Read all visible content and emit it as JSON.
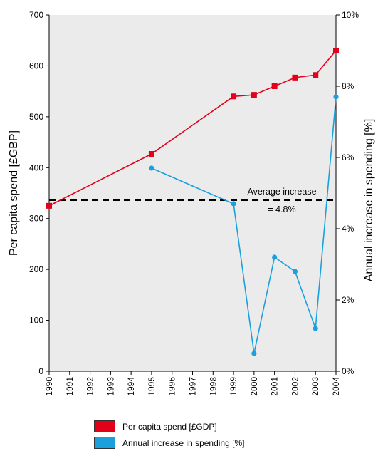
{
  "colors": {
    "series1": "#e2001a",
    "series2": "#1aa0dc",
    "plot_background": "#ebebeb",
    "reference_line": "#000000"
  },
  "chart_data": {
    "type": "line",
    "categories": [
      "1990",
      "1991",
      "1992",
      "1993",
      "1994",
      "1995",
      "1996",
      "1997",
      "1998",
      "1999",
      "2000",
      "2001",
      "2002",
      "2003",
      "2004"
    ],
    "ylabel": "Per capita spend [£GBP]",
    "y2label": "Annual increase in spending [%]",
    "ylim": [
      0,
      700
    ],
    "y2lim": [
      0,
      10
    ],
    "yticks": [
      "0",
      "100",
      "200",
      "300",
      "400",
      "500",
      "600",
      "700"
    ],
    "y2ticks": [
      "0%",
      "2%",
      "4%",
      "6%",
      "8%",
      "10%"
    ],
    "grid": false,
    "legend_position": "bottom",
    "series": [
      {
        "name": "Per capita spend [£GDP]",
        "axis": "left",
        "marker": "square",
        "points": [
          {
            "x": "1990",
            "y": 325
          },
          {
            "x": "1995",
            "y": 427
          },
          {
            "x": "1999",
            "y": 540
          },
          {
            "x": "2000",
            "y": 543
          },
          {
            "x": "2001",
            "y": 560
          },
          {
            "x": "2002",
            "y": 577
          },
          {
            "x": "2003",
            "y": 582
          },
          {
            "x": "2004",
            "y": 630
          }
        ]
      },
      {
        "name": "Annual increase in spending [%]",
        "axis": "right",
        "marker": "circle",
        "points": [
          {
            "x": "1995",
            "y": 5.7
          },
          {
            "x": "1999",
            "y": 4.7
          },
          {
            "x": "2000",
            "y": 0.5
          },
          {
            "x": "2001",
            "y": 3.2
          },
          {
            "x": "2002",
            "y": 2.8
          },
          {
            "x": "2003",
            "y": 1.2
          },
          {
            "x": "2004",
            "y": 7.7
          }
        ]
      }
    ],
    "reference_line": {
      "axis": "left",
      "y": 336,
      "style": "dashed",
      "label_line1": "Average increase",
      "label_line2": "= 4.8%"
    }
  }
}
